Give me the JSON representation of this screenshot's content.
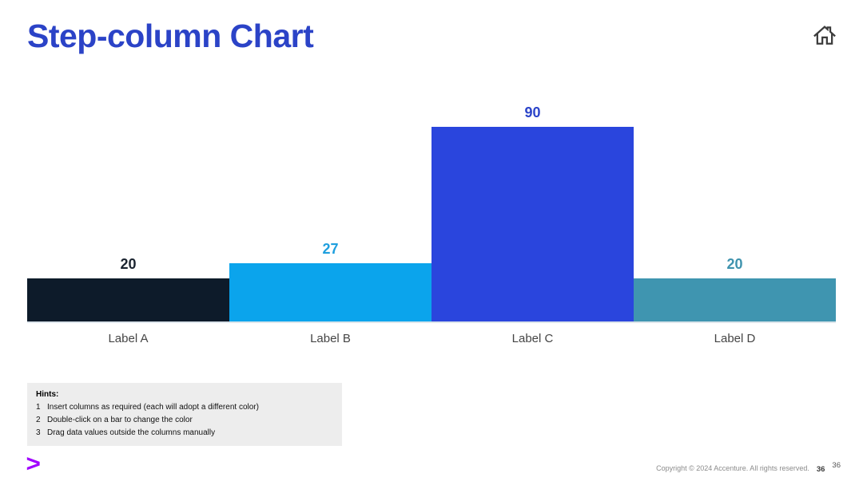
{
  "slide": {
    "title": "Step-column Chart",
    "logo_glyph": ">",
    "accent_color": "#A100FF",
    "copyright": "Copyright © 2024 Accenture. All rights reserved.",
    "page_number_bold": "36",
    "page_number_light": "36"
  },
  "icons": {
    "home": "home-icon"
  },
  "hints": {
    "heading": "Hints:",
    "items": [
      {
        "num": "1",
        "text": "Insert columns as required (each will adopt a different color)"
      },
      {
        "num": "2",
        "text": "Double-click on a bar to change the color"
      },
      {
        "num": "3",
        "text": "Drag data values outside the columns manually"
      }
    ]
  },
  "chart_data": {
    "type": "bar",
    "subtype": "step-column (adjoining bars, no gaps)",
    "title": "Step-column Chart",
    "categories": [
      "Label A",
      "Label B",
      "Label C",
      "Label D"
    ],
    "values": [
      20,
      27,
      90,
      20
    ],
    "bar_colors": [
      "#0D1B2A",
      "#0BA4EC",
      "#2A45DD",
      "#3F95B0"
    ],
    "value_label_colors": [
      "#1B2430",
      "#1E9FDE",
      "#2B44C9",
      "#3F93AE"
    ],
    "xlabel": "",
    "ylabel": "",
    "ylim": [
      0,
      100
    ],
    "grid": false,
    "legend": false,
    "axes_shown": false,
    "data_labels_position": "above columns"
  }
}
